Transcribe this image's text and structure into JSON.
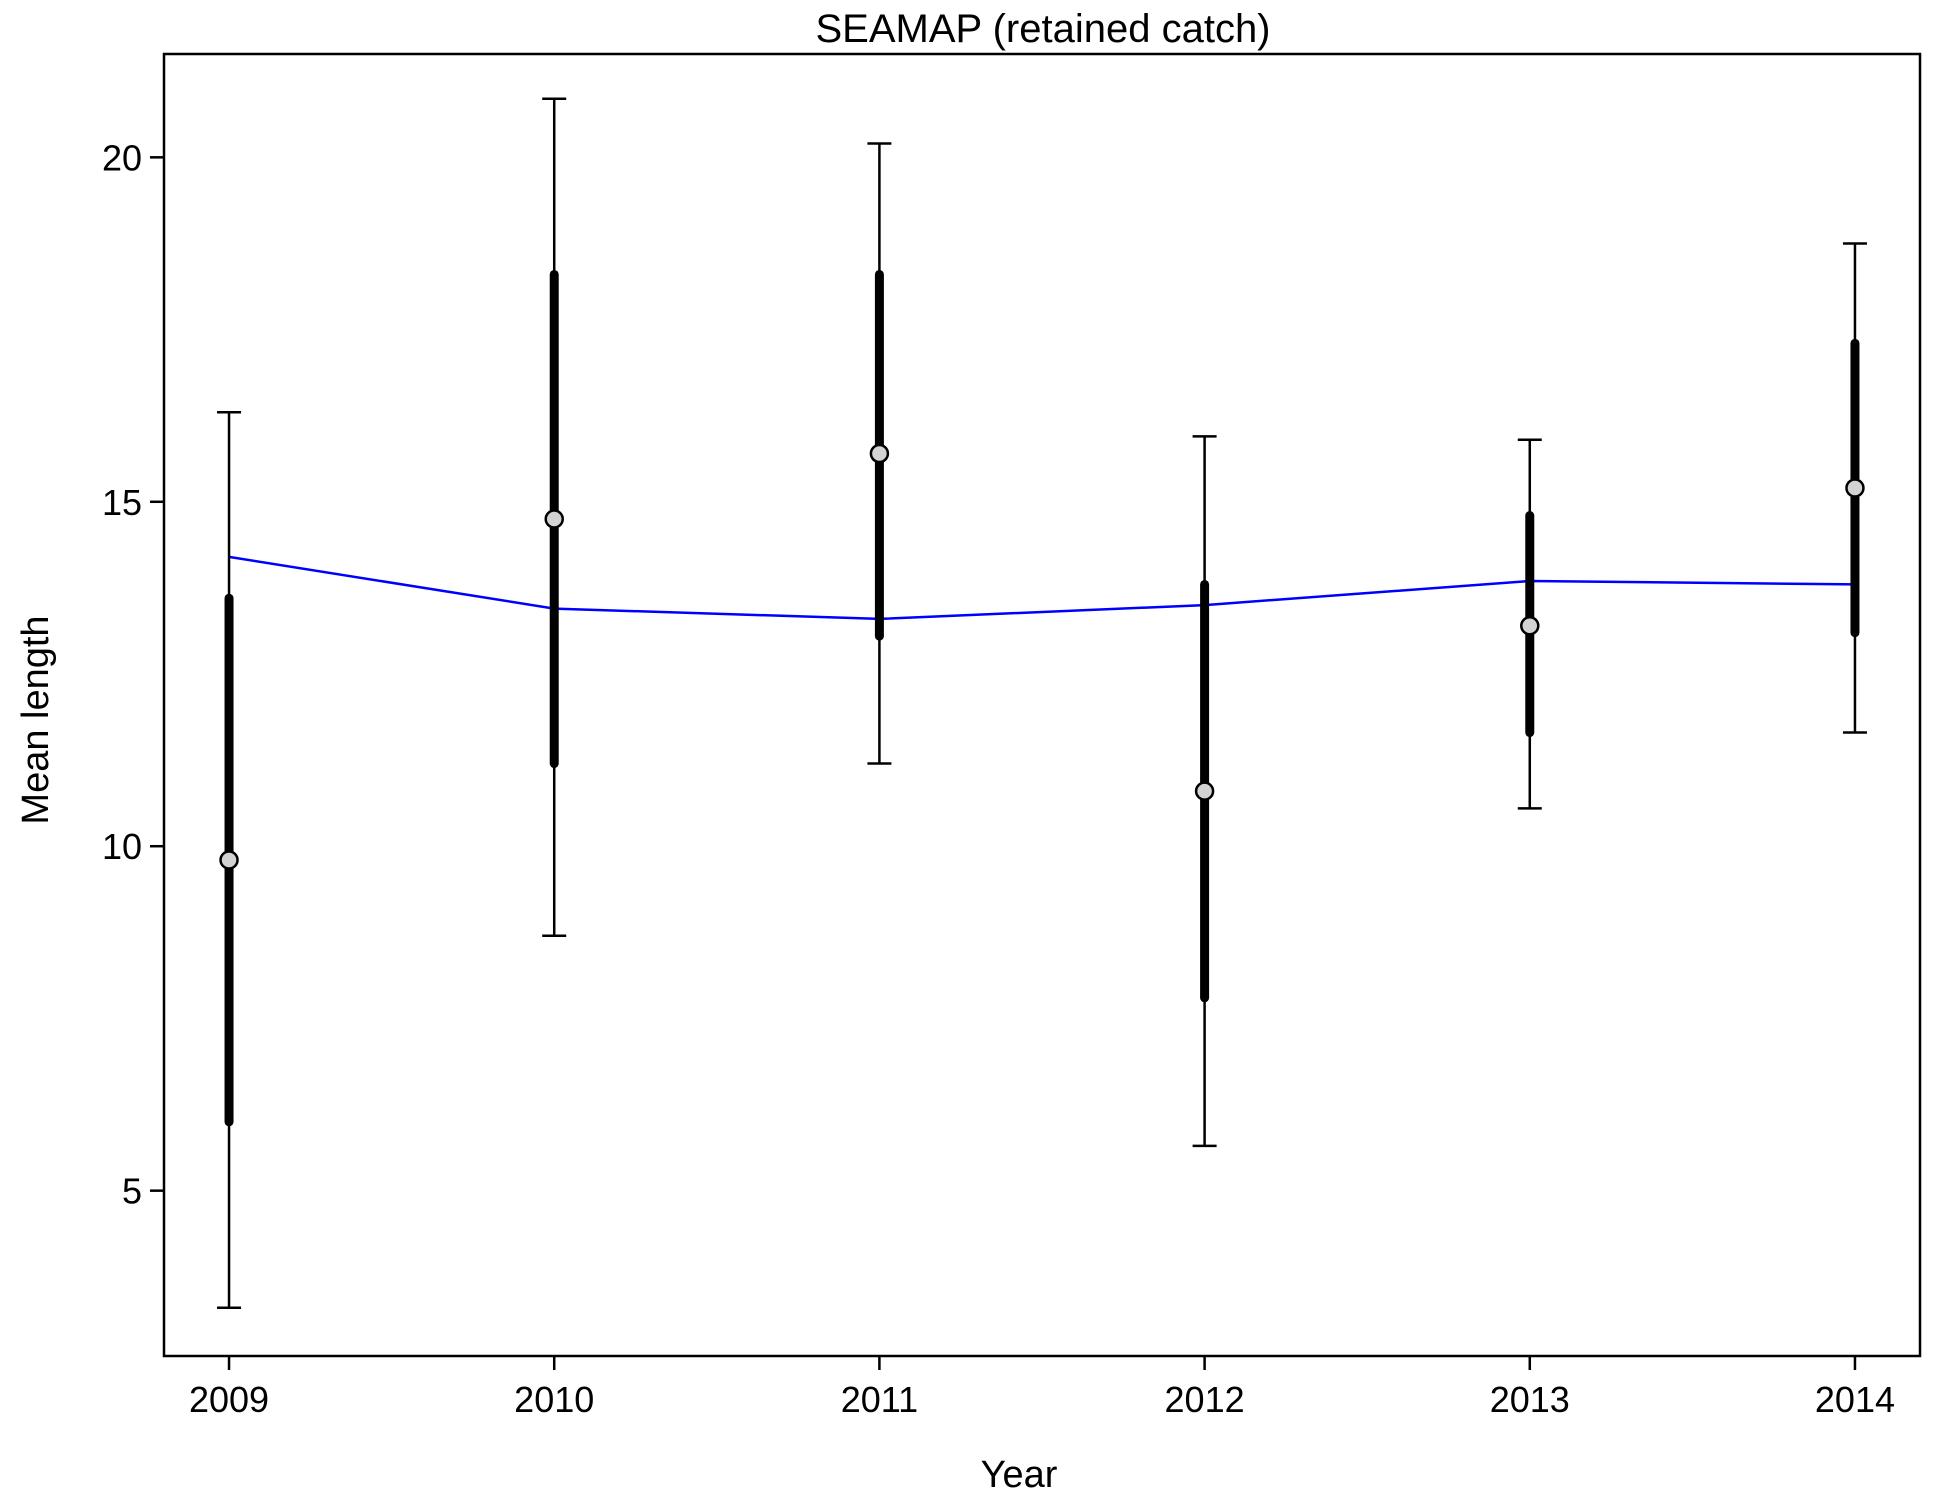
{
  "chart_data": {
    "type": "scatter",
    "title": "SEAMAP (retained catch)",
    "xlabel": "Year",
    "ylabel": "Mean length",
    "x_ticks": [
      2009,
      2010,
      2011,
      2012,
      2013,
      2014
    ],
    "y_ticks": [
      5,
      10,
      15,
      20
    ],
    "xlim": [
      2008.8,
      2014.2
    ],
    "ylim": [
      2.6,
      21.5
    ],
    "grid": false,
    "observed": {
      "x": [
        2009,
        2010,
        2011,
        2012,
        2013,
        2014
      ],
      "y": [
        9.8,
        14.75,
        15.7,
        10.8,
        13.2,
        15.2
      ],
      "inner_interval_low": [
        6.0,
        11.2,
        13.05,
        7.8,
        11.65,
        13.1
      ],
      "inner_interval_high": [
        13.6,
        18.3,
        18.3,
        13.8,
        14.8,
        17.3
      ],
      "outer_interval_low": [
        3.3,
        8.7,
        11.2,
        5.65,
        10.55,
        11.65
      ],
      "outer_interval_high": [
        16.3,
        20.85,
        20.2,
        15.95,
        15.9,
        18.75
      ],
      "marker_fill": "#d3d3d3",
      "color": "#000000"
    },
    "expected": {
      "x": [
        2009,
        2010,
        2011,
        2012,
        2013,
        2014
      ],
      "y": [
        14.2,
        13.45,
        13.3,
        13.5,
        13.85,
        13.8
      ],
      "color": "#0000ff"
    }
  }
}
